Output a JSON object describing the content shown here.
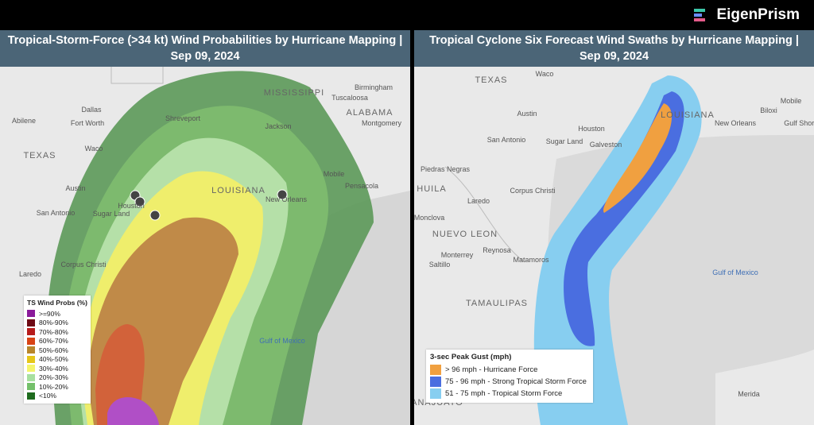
{
  "brand": "EigenPrism",
  "panels": [
    {
      "title": "Tropical-Storm-Force (>34 kt) Wind Probabilities by Hurricane Mapping | Sep 09, 2024",
      "places": [
        "Dallas",
        "Fort Worth",
        "Abilene",
        "TEXAS",
        "Waco",
        "Austin",
        "San Antonio",
        "Houston",
        "Sugar Land",
        "Corpus Christi",
        "Laredo",
        "Shreveport",
        "MISSISSIPPI",
        "ALABAMA",
        "Birmingham",
        "Tuscaloosa",
        "Montgomery",
        "Jackson",
        "LOUISIANA",
        "New Orleans",
        "Mobile",
        "Pensacola",
        "Gulf of Mexico"
      ],
      "legend": {
        "title": "TS Wind Probs (%)",
        "items": [
          ">=90%",
          "80%-90%",
          "70%-80%",
          "60%-70%",
          "50%-60%",
          "40%-50%",
          "30%-40%",
          "20%-30%",
          "10%-20%",
          "<10%"
        ]
      }
    },
    {
      "title": "Tropical Cyclone Six Forecast Wind Swaths by Hurricane Mapping | Sep 09, 2024",
      "places": [
        "TEXAS",
        "Waco",
        "Austin",
        "Houston",
        "San Antonio",
        "Sugar Land",
        "Galveston",
        "Piedras Negras",
        "HUILA",
        "Corpus Christi",
        "Laredo",
        "Monclova",
        "NUEVO LEON",
        "Monterrey",
        "Reynosa",
        "Matamoros",
        "Saltillo",
        "TAMAULIPAS",
        "LOUISIANA",
        "New Orleans",
        "Mobile",
        "Biloxi",
        "Gulf Shores",
        "Gulf of Mexico",
        "Merida",
        "ANAJUATO"
      ],
      "legend": {
        "title": "3-sec Peak Gust (mph)",
        "items": [
          "> 96 mph - Hurricane Force",
          "75 - 96 mph - Strong Tropical Storm Force",
          "51 - 75 mph - Tropical Storm Force"
        ]
      }
    }
  ]
}
